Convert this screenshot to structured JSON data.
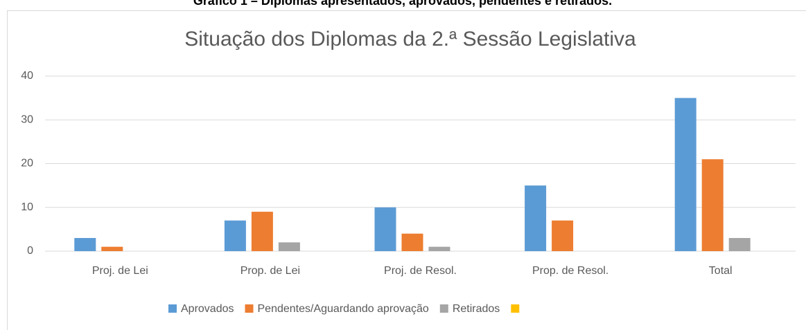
{
  "caption": "Gráfico 1 – Diplomas apresentados, aprovados, pendentes e retirados.",
  "chart_data": {
    "type": "bar",
    "title": "Situação dos Diplomas da 2.ª Sessão Legislativa",
    "categories": [
      "Proj. de Lei",
      "Prop. de Lei",
      "Proj. de Resol.",
      "Prop. de Resol.",
      "Total"
    ],
    "series": [
      {
        "name": "Aprovados",
        "color": "#5b9bd5",
        "values": [
          3,
          7,
          10,
          15,
          35
        ]
      },
      {
        "name": "Pendentes/Aguardando aprovação",
        "color": "#ed7d31",
        "values": [
          1,
          9,
          4,
          7,
          21
        ]
      },
      {
        "name": "Retirados",
        "color": "#a5a5a5",
        "values": [
          0,
          2,
          1,
          0,
          3
        ]
      },
      {
        "name": null,
        "color": "#ffc000",
        "values": [
          null,
          null,
          null,
          null,
          null
        ]
      }
    ],
    "ylim": [
      0,
      40
    ],
    "yticks": [
      0,
      10,
      20,
      30,
      40
    ],
    "grid": true,
    "legend": "bottom"
  }
}
